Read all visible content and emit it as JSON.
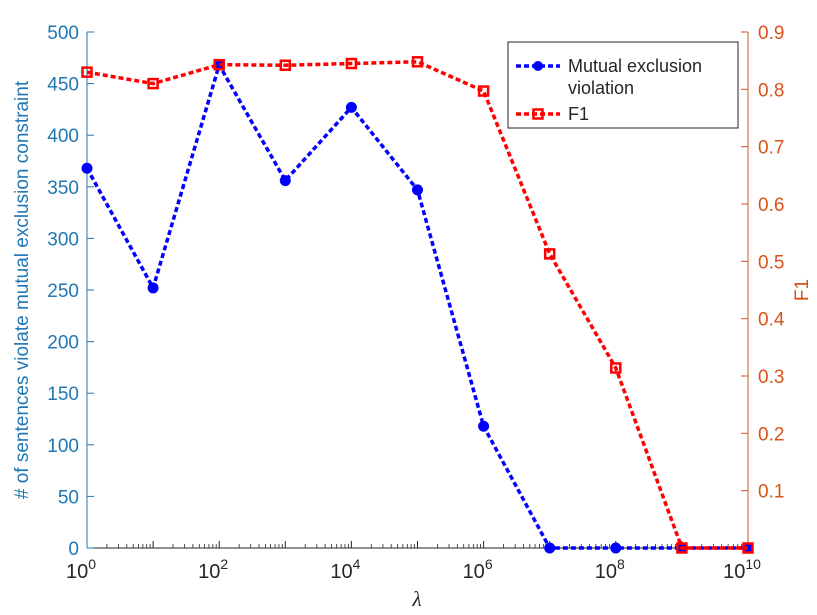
{
  "chart_data": {
    "type": "line",
    "xlabel": "λ",
    "ylabel_left": "# of sentences violate mutual exclusion constraint",
    "ylabel_right": "F1",
    "x_scale": "log",
    "x": [
      1,
      10,
      100,
      1000,
      10000,
      100000,
      1000000,
      10000000,
      100000000,
      1000000000,
      10000000000
    ],
    "x_tick_labels": [
      {
        "base": "10",
        "exp": "0"
      },
      {
        "base": "10",
        "exp": "2"
      },
      {
        "base": "10",
        "exp": "4"
      },
      {
        "base": "10",
        "exp": "6"
      },
      {
        "base": "10",
        "exp": "8"
      },
      {
        "base": "10",
        "exp": "10"
      }
    ],
    "left_ylim": [
      0,
      500
    ],
    "left_ticks": [
      "0",
      "50",
      "100",
      "150",
      "200",
      "250",
      "300",
      "350",
      "400",
      "450",
      "500"
    ],
    "right_ylim": [
      0,
      0.9
    ],
    "right_ticks": [
      "0.1",
      "0.2",
      "0.3",
      "0.4",
      "0.5",
      "0.6",
      "0.7",
      "0.8",
      "0.9"
    ],
    "legend_position": "top-right",
    "series": [
      {
        "name": "Mutual exclusion violation",
        "legend_lines": [
          "Mutual exclusion",
          "violation"
        ],
        "axis": "left",
        "color": "#0000ff",
        "marker": "circle",
        "values": [
          368,
          252,
          468,
          356,
          427,
          347,
          118,
          0,
          0,
          0,
          0
        ]
      },
      {
        "name": "F1",
        "legend_lines": [
          "F1"
        ],
        "axis": "right",
        "color": "#ff0000",
        "marker": "square",
        "values": [
          0.83,
          0.81,
          0.843,
          0.842,
          0.845,
          0.848,
          0.797,
          0.513,
          0.314,
          0,
          0
        ]
      }
    ],
    "colors": {
      "left_axis": "#1f77b4",
      "right_axis": "#d95319"
    }
  }
}
